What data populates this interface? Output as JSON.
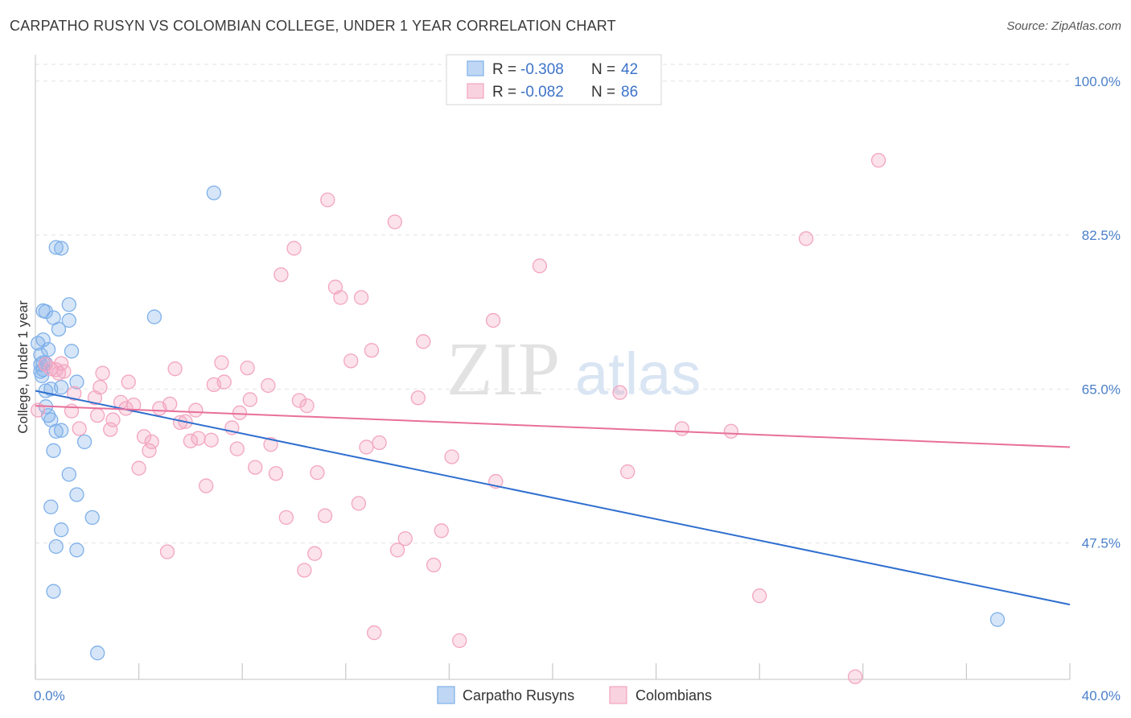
{
  "chart_data": {
    "type": "scatter",
    "title": "CARPATHO RUSYN VS COLOMBIAN COLLEGE, UNDER 1 YEAR CORRELATION CHART",
    "source": "Source: ZipAtlas.com",
    "ylabel": "College, Under 1 year",
    "xlabel": "",
    "xlim": [
      0,
      40
    ],
    "ylim": [
      32,
      103
    ],
    "x_tick_labels": [
      "0.0%",
      "40.0%"
    ],
    "y_ticks": [
      {
        "value": 100.0,
        "label": "100.0%"
      },
      {
        "value": 82.5,
        "label": "82.5%"
      },
      {
        "value": 65.0,
        "label": "65.0%"
      },
      {
        "value": 47.5,
        "label": "47.5%"
      }
    ],
    "watermark": {
      "zip": "ZIP",
      "atlas": "atlas"
    },
    "legend_top": [
      {
        "r_label": "R = ",
        "r_value": "-0.308",
        "n_label": "N = ",
        "n_value": "42"
      },
      {
        "r_label": "R = ",
        "r_value": "-0.082",
        "n_label": "N = ",
        "n_value": "86"
      }
    ],
    "series": [
      {
        "name": "Carpatho Rusyns",
        "color": "#7fb0ea",
        "line_color": "#2f6fcf",
        "trend": {
          "x": [
            0,
            40
          ],
          "y": [
            64.8,
            40.5
          ]
        },
        "points": [
          [
            0.2,
            67.8
          ],
          [
            0.3,
            67.2
          ],
          [
            0.25,
            66.5
          ],
          [
            0.4,
            67.9
          ],
          [
            0.2,
            68.9
          ],
          [
            0.3,
            70.6
          ],
          [
            0.5,
            69.5
          ],
          [
            0.1,
            70.2
          ],
          [
            0.4,
            73.8
          ],
          [
            0.3,
            73.9
          ],
          [
            0.7,
            73.1
          ],
          [
            1.3,
            74.6
          ],
          [
            0.9,
            71.8
          ],
          [
            1.3,
            72.8
          ],
          [
            1.4,
            69.3
          ],
          [
            0.8,
            81.1
          ],
          [
            1.0,
            81.0
          ],
          [
            6.9,
            87.3
          ],
          [
            4.6,
            73.2
          ],
          [
            0.2,
            67.0
          ],
          [
            0.4,
            64.8
          ],
          [
            0.6,
            65.0
          ],
          [
            0.4,
            63.0
          ],
          [
            0.5,
            62.0
          ],
          [
            1.0,
            65.2
          ],
          [
            1.6,
            65.8
          ],
          [
            0.6,
            61.5
          ],
          [
            0.8,
            60.2
          ],
          [
            1.0,
            60.3
          ],
          [
            1.9,
            59.0
          ],
          [
            0.7,
            58.0
          ],
          [
            1.3,
            55.3
          ],
          [
            1.6,
            53.0
          ],
          [
            0.6,
            51.6
          ],
          [
            2.2,
            50.4
          ],
          [
            1.0,
            49.0
          ],
          [
            0.8,
            47.1
          ],
          [
            1.6,
            46.7
          ],
          [
            0.7,
            42.0
          ],
          [
            2.4,
            35.0
          ],
          [
            37.2,
            38.8
          ],
          [
            0.3,
            68.0
          ]
        ]
      },
      {
        "name": "Colombians",
        "color": "#f3a5c0",
        "line_color": "#e8709a",
        "trend": {
          "x": [
            0,
            40
          ],
          "y": [
            63.1,
            58.4
          ]
        },
        "points": [
          [
            0.1,
            62.6
          ],
          [
            0.4,
            67.8
          ],
          [
            0.6,
            67.3
          ],
          [
            0.8,
            67.2
          ],
          [
            1.0,
            67.9
          ],
          [
            1.1,
            67.0
          ],
          [
            0.9,
            66.8
          ],
          [
            1.5,
            64.5
          ],
          [
            1.7,
            60.5
          ],
          [
            1.4,
            62.5
          ],
          [
            2.3,
            64.0
          ],
          [
            2.4,
            62.0
          ],
          [
            2.5,
            65.2
          ],
          [
            2.6,
            66.8
          ],
          [
            2.9,
            60.4
          ],
          [
            3.0,
            61.5
          ],
          [
            3.3,
            63.5
          ],
          [
            3.5,
            62.8
          ],
          [
            3.6,
            65.8
          ],
          [
            3.8,
            63.2
          ],
          [
            4.0,
            56.0
          ],
          [
            4.2,
            59.6
          ],
          [
            4.4,
            58.0
          ],
          [
            4.5,
            59.0
          ],
          [
            4.8,
            62.8
          ],
          [
            5.1,
            46.5
          ],
          [
            5.2,
            63.3
          ],
          [
            5.4,
            67.3
          ],
          [
            5.6,
            61.2
          ],
          [
            5.8,
            61.3
          ],
          [
            6.0,
            59.1
          ],
          [
            6.2,
            62.6
          ],
          [
            6.3,
            59.4
          ],
          [
            6.6,
            54.0
          ],
          [
            6.8,
            59.2
          ],
          [
            6.9,
            65.5
          ],
          [
            7.2,
            68.0
          ],
          [
            7.3,
            65.8
          ],
          [
            7.6,
            60.6
          ],
          [
            7.8,
            58.2
          ],
          [
            7.9,
            62.3
          ],
          [
            8.2,
            67.4
          ],
          [
            8.3,
            63.8
          ],
          [
            8.5,
            56.1
          ],
          [
            9.0,
            65.4
          ],
          [
            9.1,
            58.7
          ],
          [
            9.3,
            55.4
          ],
          [
            9.5,
            78.0
          ],
          [
            9.7,
            50.4
          ],
          [
            10.0,
            81.0
          ],
          [
            10.2,
            63.7
          ],
          [
            10.4,
            44.4
          ],
          [
            10.5,
            63.1
          ],
          [
            10.8,
            46.3
          ],
          [
            10.9,
            55.5
          ],
          [
            11.2,
            50.6
          ],
          [
            11.3,
            86.5
          ],
          [
            11.6,
            76.6
          ],
          [
            11.8,
            75.4
          ],
          [
            12.2,
            68.2
          ],
          [
            12.5,
            52.0
          ],
          [
            12.6,
            75.4
          ],
          [
            12.8,
            58.4
          ],
          [
            13.0,
            69.4
          ],
          [
            13.1,
            37.3
          ],
          [
            13.3,
            58.9
          ],
          [
            13.9,
            84.0
          ],
          [
            14.0,
            46.7
          ],
          [
            14.3,
            48.0
          ],
          [
            14.8,
            64.0
          ],
          [
            15.0,
            70.4
          ],
          [
            15.4,
            45.0
          ],
          [
            15.7,
            48.9
          ],
          [
            16.1,
            57.3
          ],
          [
            16.4,
            36.4
          ],
          [
            17.7,
            72.8
          ],
          [
            17.8,
            54.5
          ],
          [
            19.5,
            79.0
          ],
          [
            22.6,
            64.6
          ],
          [
            22.9,
            55.6
          ],
          [
            25.0,
            60.5
          ],
          [
            26.9,
            60.2
          ],
          [
            28.0,
            41.5
          ],
          [
            29.8,
            82.1
          ],
          [
            31.7,
            32.3
          ],
          [
            32.6,
            91.0
          ]
        ]
      }
    ]
  }
}
